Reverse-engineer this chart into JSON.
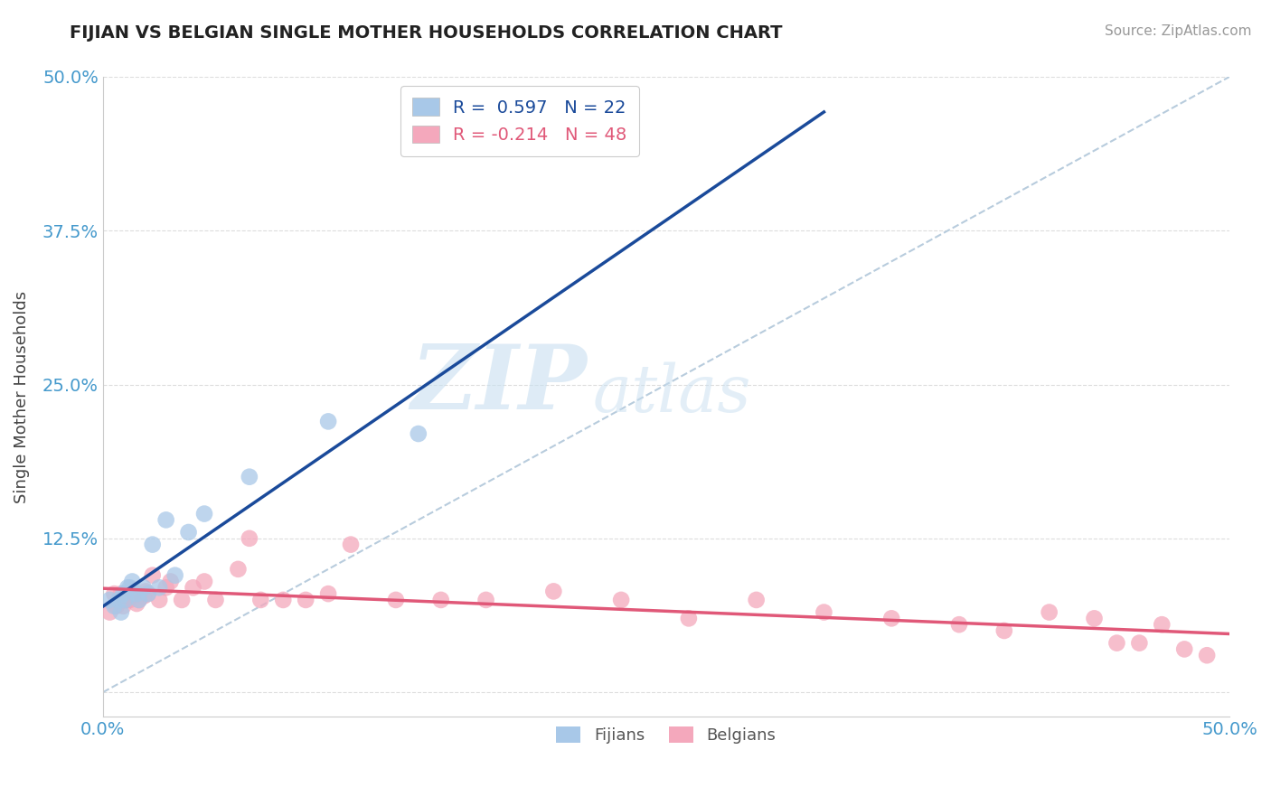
{
  "title": "FIJIAN VS BELGIAN SINGLE MOTHER HOUSEHOLDS CORRELATION CHART",
  "source": "Source: ZipAtlas.com",
  "xlabel": "",
  "ylabel": "Single Mother Households",
  "xlim": [
    0.0,
    0.5
  ],
  "ylim": [
    -0.02,
    0.5
  ],
  "xticks": [
    0.0,
    0.125,
    0.25,
    0.375,
    0.5
  ],
  "yticks": [
    0.0,
    0.125,
    0.25,
    0.375,
    0.5
  ],
  "xticklabels": [
    "0.0%",
    "",
    "",
    "",
    "50.0%"
  ],
  "yticklabels": [
    "",
    "12.5%",
    "25.0%",
    "37.5%",
    "50.0%"
  ],
  "fijian_color": "#A8C8E8",
  "belgian_color": "#F4A8BC",
  "fijian_R": 0.597,
  "fijian_N": 22,
  "belgian_R": -0.214,
  "belgian_N": 48,
  "fijian_line_color": "#1A4A9A",
  "belgian_line_color": "#E05878",
  "ref_line_color": "#B8CCDD",
  "grid_color": "#DDDDDD",
  "title_color": "#222222",
  "axis_label_color": "#444444",
  "tick_label_color": "#4499CC",
  "watermark_zip": "ZIP",
  "watermark_atlas": "atlas",
  "fijian_x": [
    0.003,
    0.005,
    0.007,
    0.008,
    0.009,
    0.01,
    0.011,
    0.012,
    0.013,
    0.015,
    0.016,
    0.018,
    0.02,
    0.022,
    0.025,
    0.028,
    0.032,
    0.038,
    0.045,
    0.065,
    0.1,
    0.14
  ],
  "fijian_y": [
    0.075,
    0.07,
    0.075,
    0.065,
    0.08,
    0.075,
    0.085,
    0.085,
    0.09,
    0.08,
    0.075,
    0.085,
    0.08,
    0.12,
    0.085,
    0.14,
    0.095,
    0.13,
    0.145,
    0.175,
    0.22,
    0.21
  ],
  "belgian_x": [
    0.003,
    0.005,
    0.006,
    0.007,
    0.008,
    0.009,
    0.01,
    0.011,
    0.012,
    0.013,
    0.015,
    0.016,
    0.018,
    0.019,
    0.02,
    0.022,
    0.025,
    0.028,
    0.03,
    0.035,
    0.04,
    0.045,
    0.05,
    0.06,
    0.065,
    0.07,
    0.08,
    0.09,
    0.1,
    0.11,
    0.13,
    0.15,
    0.17,
    0.2,
    0.23,
    0.26,
    0.29,
    0.32,
    0.35,
    0.38,
    0.4,
    0.42,
    0.44,
    0.45,
    0.46,
    0.47,
    0.48,
    0.49
  ],
  "belgian_y": [
    0.065,
    0.08,
    0.07,
    0.075,
    0.08,
    0.07,
    0.075,
    0.075,
    0.075,
    0.08,
    0.072,
    0.075,
    0.078,
    0.082,
    0.08,
    0.095,
    0.075,
    0.085,
    0.09,
    0.075,
    0.085,
    0.09,
    0.075,
    0.1,
    0.125,
    0.075,
    0.075,
    0.075,
    0.08,
    0.12,
    0.075,
    0.075,
    0.075,
    0.082,
    0.075,
    0.06,
    0.075,
    0.065,
    0.06,
    0.055,
    0.05,
    0.065,
    0.06,
    0.04,
    0.04,
    0.055,
    0.035,
    0.03
  ],
  "fijian_line_x": [
    0.0,
    0.32
  ],
  "belgian_line_x": [
    0.0,
    0.5
  ]
}
